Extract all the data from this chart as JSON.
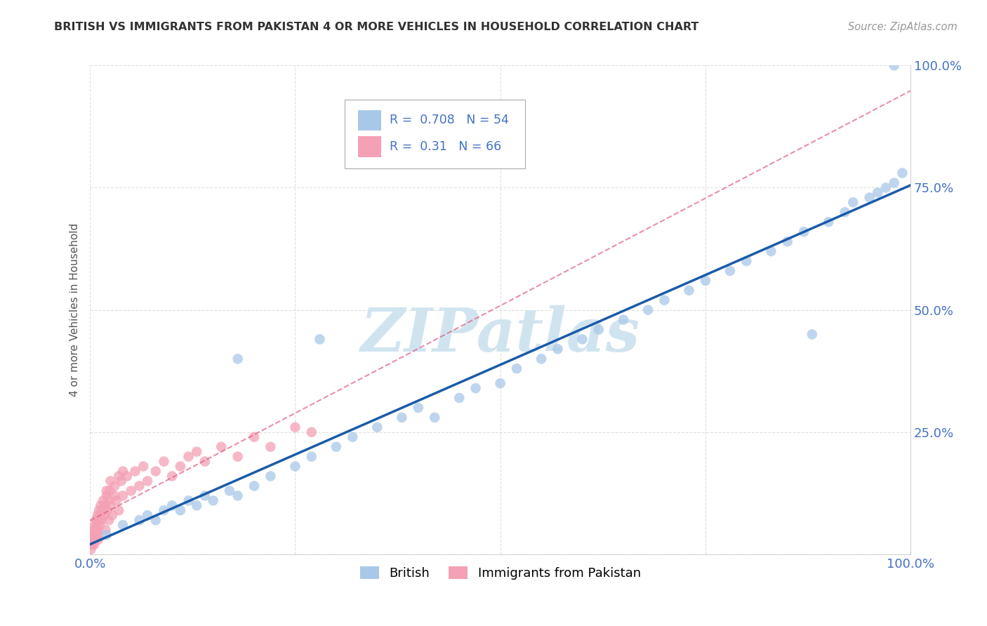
{
  "title": "BRITISH VS IMMIGRANTS FROM PAKISTAN 4 OR MORE VEHICLES IN HOUSEHOLD CORRELATION CHART",
  "source": "Source: ZipAtlas.com",
  "ylabel_label": "4 or more Vehicles in Household",
  "x_tick_positions": [
    0.0,
    0.25,
    0.5,
    0.75,
    1.0
  ],
  "x_tick_labels": [
    "0.0%",
    "",
    "",
    "",
    "100.0%"
  ],
  "y_tick_positions": [
    0.0,
    0.25,
    0.5,
    0.75,
    1.0
  ],
  "y_tick_labels": [
    "",
    "25.0%",
    "50.0%",
    "75.0%",
    "100.0%"
  ],
  "british_color": "#a8c8e8",
  "british_line_color": "#1a5ba8",
  "pakistan_color": "#f4a0b5",
  "pakistan_line_color": "#e06080",
  "british_R": 0.708,
  "british_N": 54,
  "pakistan_R": 0.31,
  "pakistan_N": 66,
  "watermark": "ZIPatlas",
  "watermark_color": "#d0e4f0",
  "background_color": "#ffffff",
  "grid_color": "#cccccc",
  "british_x": [
    0.02,
    0.04,
    0.06,
    0.07,
    0.08,
    0.09,
    0.1,
    0.11,
    0.12,
    0.13,
    0.14,
    0.15,
    0.17,
    0.18,
    0.2,
    0.22,
    0.25,
    0.27,
    0.3,
    0.32,
    0.35,
    0.38,
    0.4,
    0.42,
    0.45,
    0.47,
    0.5,
    0.52,
    0.55,
    0.57,
    0.6,
    0.62,
    0.65,
    0.68,
    0.7,
    0.73,
    0.75,
    0.78,
    0.8,
    0.83,
    0.85,
    0.87,
    0.88,
    0.9,
    0.92,
    0.93,
    0.95,
    0.96,
    0.97,
    0.98,
    0.99,
    0.28,
    0.18,
    0.98
  ],
  "british_y": [
    0.04,
    0.06,
    0.07,
    0.08,
    0.07,
    0.09,
    0.1,
    0.09,
    0.11,
    0.1,
    0.12,
    0.11,
    0.13,
    0.12,
    0.14,
    0.16,
    0.18,
    0.2,
    0.22,
    0.24,
    0.26,
    0.28,
    0.3,
    0.28,
    0.32,
    0.34,
    0.35,
    0.38,
    0.4,
    0.42,
    0.44,
    0.46,
    0.48,
    0.5,
    0.52,
    0.54,
    0.56,
    0.58,
    0.6,
    0.62,
    0.64,
    0.66,
    0.45,
    0.68,
    0.7,
    0.72,
    0.73,
    0.74,
    0.75,
    0.76,
    0.78,
    0.44,
    0.4,
    1.0
  ],
  "pakistan_x": [
    0.001,
    0.002,
    0.002,
    0.003,
    0.003,
    0.004,
    0.004,
    0.005,
    0.005,
    0.006,
    0.006,
    0.007,
    0.007,
    0.008,
    0.008,
    0.009,
    0.009,
    0.01,
    0.01,
    0.011,
    0.012,
    0.012,
    0.013,
    0.014,
    0.015,
    0.016,
    0.017,
    0.018,
    0.019,
    0.02,
    0.021,
    0.022,
    0.023,
    0.024,
    0.025,
    0.027,
    0.03,
    0.032,
    0.035,
    0.038,
    0.04,
    0.045,
    0.05,
    0.055,
    0.06,
    0.065,
    0.07,
    0.08,
    0.09,
    0.1,
    0.11,
    0.12,
    0.13,
    0.14,
    0.16,
    0.18,
    0.2,
    0.22,
    0.25,
    0.27,
    0.02,
    0.025,
    0.01,
    0.035,
    0.03,
    0.04
  ],
  "pakistan_y": [
    0.01,
    0.02,
    0.03,
    0.02,
    0.04,
    0.03,
    0.05,
    0.04,
    0.02,
    0.06,
    0.03,
    0.05,
    0.07,
    0.04,
    0.06,
    0.08,
    0.05,
    0.07,
    0.03,
    0.09,
    0.06,
    0.08,
    0.1,
    0.07,
    0.09,
    0.11,
    0.08,
    0.1,
    0.05,
    0.12,
    0.09,
    0.11,
    0.07,
    0.13,
    0.1,
    0.08,
    0.14,
    0.11,
    0.09,
    0.15,
    0.12,
    0.16,
    0.13,
    0.17,
    0.14,
    0.18,
    0.15,
    0.17,
    0.19,
    0.16,
    0.18,
    0.2,
    0.21,
    0.19,
    0.22,
    0.2,
    0.24,
    0.22,
    0.26,
    0.25,
    0.13,
    0.15,
    0.04,
    0.16,
    0.12,
    0.17
  ]
}
